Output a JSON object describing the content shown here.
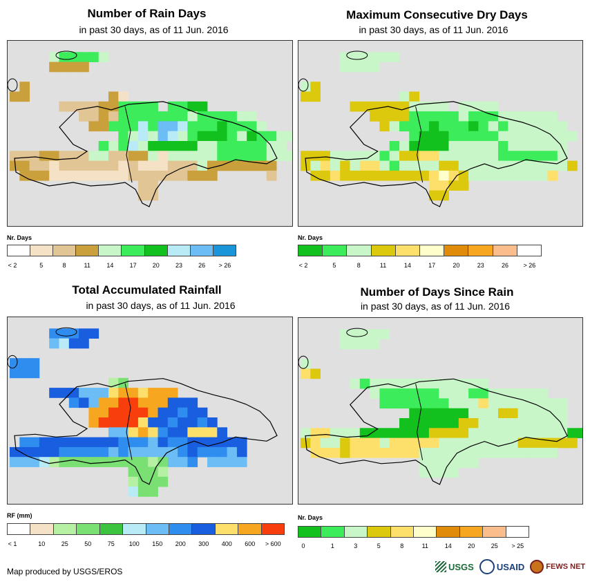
{
  "panels": [
    {
      "id": "rain-days",
      "title": "Number of Rain Days",
      "subtitle": "in past 30 days, as of 11 Jun. 2016",
      "legend_title": "Nr. Days",
      "legend_colors": [
        "#ffffff",
        "#f5e2c6",
        "#e1c595",
        "#c9a03c",
        "#c9f6c9",
        "#3cec5a",
        "#13c11e",
        "#b9ebf6",
        "#6cbdf5",
        "#1b95d9"
      ],
      "legend_labels": [
        "< 2",
        "5",
        "8",
        "11",
        "14",
        "17",
        "20",
        "23",
        "26",
        "> 26"
      ],
      "label_mode": "center",
      "palette": {
        "a": "#c9a03c",
        "b": "#e1c595",
        "c": "#f5e2c6",
        "g": "#c9f6c9",
        "m": "#3cec5a",
        "d": "#13c11e",
        "s": "#b9ebf6",
        "l": "#6cbdf5"
      },
      "grid": [
        "............................",
        "....gmmmmg..................",
        "....aaaa....................",
        "............................",
        ".a..........................",
        "aa........ac................",
        ".....bbbbaammmm.mmdd........",
        ".......bbabmmmmmmmgmmmmgg...",
        "........aammmsmllsmmmdmmmg..",
        "...........mgsglsgmdddmgdmmgg",
        ".........mgmsgdddddggmmmmmgg",
        "bbbaabbbggbbaagcgggggmmmmmggg",
        "aabbcbbbbbbcbcccbbbgaaaaaaa.",
        ".aaaccccccccbbbbbbaaa.....b.",
        ".............bb.............",
        ".............bb............."
      ]
    },
    {
      "id": "dry-days",
      "title": "Maximum Consecutive Dry Days",
      "subtitle": "in past 30 days, as of 11 Jun. 2016",
      "legend_title": "Nr. Days",
      "legend_colors": [
        "#13c11e",
        "#3cec5a",
        "#c9f6c9",
        "#dcc90e",
        "#fde06c",
        "#ffffcc",
        "#e08b0a",
        "#f7a71f",
        "#fbbd8c",
        "#ffffff"
      ],
      "legend_labels": [
        "< 2",
        "5",
        "8",
        "11",
        "14",
        "17",
        "20",
        "23",
        "26",
        "> 26"
      ],
      "label_mode": "center",
      "palette": {
        "g": "#c9f6c9",
        "m": "#3cec5a",
        "d": "#13c11e",
        "y": "#dcc90e",
        "p": "#fde06c",
        "c": "#ffffcc"
      },
      "grid": [
        "............................",
        "....gggggg..................",
        "....gggg....................",
        "............................",
        "gy..........................",
        "yy........gy................",
        ".....yyyyyygggg.gggg........",
        ".......yyyymmmmmgmmmgggggg..",
        "........ygmmmdmmmdmgmgggggg.",
        "...........mdddmmmmmgggggggg",
        ".........mgddddgggggmgggggg.",
        "yyygggggmgyyppggggggmmmmmmg.",
        "ygpgygppgmggggyygggggggggggy",
        ".yypyyyyyyyyypcpyggggggggp..",
        ".............ppyy...........",
        ".............yy.............",
        "............................"
      ]
    },
    {
      "id": "rainfall",
      "title": "Total Accumulated Rainfall",
      "subtitle": "in past 30 days, as of 11 Jun. 2016",
      "legend_title": "RF (mm)",
      "legend_colors": [
        "#ffffff",
        "#f5e2c6",
        "#b6f0a2",
        "#7ae074",
        "#3cc43f",
        "#b9ebf6",
        "#6cbdf5",
        "#2f8df0",
        "#1a5ee0",
        "#fde06c",
        "#f7a71f",
        "#f73e0c"
      ],
      "legend_labels": [
        "< 1",
        "10",
        "25",
        "50",
        "75",
        "100",
        "150",
        "200",
        "300",
        "400",
        "600",
        "> 600"
      ],
      "label_mode": "edge",
      "palette": {
        "b": "#1a5ee0",
        "m": "#2f8df0",
        "l": "#6cbdf5",
        "s": "#b9ebf6",
        "y": "#fde06c",
        "o": "#f7a71f",
        "r": "#f73e0c",
        "g": "#b6f0a2",
        "n": "#7ae074"
      },
      "grid": [
        "........................",
        "....mmmbb...............",
        "....lsbb................",
        "........................",
        "mmm.....................",
        "mmm.....................",
        "..........gn............",
        "....bbblllyooyooo.......",
        "......mbloorrooobbb.....",
        "........oorrrrobbmbb....",
        "........orrrrybbmbbmb...",
        "..........llyoymbbyyyb..",
        ".mmbbbbbbbbmmmlbmmbbbbbb",
        "bbbbbmmmmmlmlllllmbmmmlb",
        "lllsgnnnnnnnnngnllm.llll",
        "............nnng........",
        "............gnnn........",
        "............snn.........",
        "........................"
      ]
    },
    {
      "id": "since-rain",
      "title": "Number of Days Since Rain",
      "subtitle": "in past 30 days, as of 11 Jun. 2016",
      "legend_title": "Nr. Days",
      "legend_colors": [
        "#13c11e",
        "#3cec5a",
        "#c9f6c9",
        "#dcc90e",
        "#fde06c",
        "#ffffcc",
        "#e08b0a",
        "#f7a71f",
        "#fbbd8c",
        "#ffffff"
      ],
      "legend_labels": [
        "0",
        "1",
        "3",
        "5",
        "8",
        "11",
        "14",
        "20",
        "25",
        "> 25"
      ],
      "label_mode": "edge",
      "palette": {
        "g": "#c9f6c9",
        "m": "#3cec5a",
        "d": "#13c11e",
        "y": "#dcc90e",
        "p": "#fde06c",
        "c": "#ffffcc"
      },
      "grid": [
        "............................",
        "....ggggg...................",
        "....gggg....................",
        "............................",
        "g...........................",
        "py..........................",
        ".....gmgggggggggggg.........",
        ".......gmmmmmmgggmmgggggg...",
        "........mmmmmmmgggpgggggggg.",
        "...........ddddddgggyyggggg.",
        "..........ddddddyyggggggggg.",
        "gppgggdddddddyyyyggggggggggdd",
        "ypggypppgpppppggggggggyyyyyy",
        ".pppypppppppgggggggggggggg..",
        "............gggggg..........",
        "............gggg............",
        "............................"
      ]
    }
  ],
  "footer_text": "Map produced by USGS/EROS",
  "logos": {
    "usgs": "USGS",
    "usaid": "USAID",
    "fews": "FEWS NET"
  }
}
